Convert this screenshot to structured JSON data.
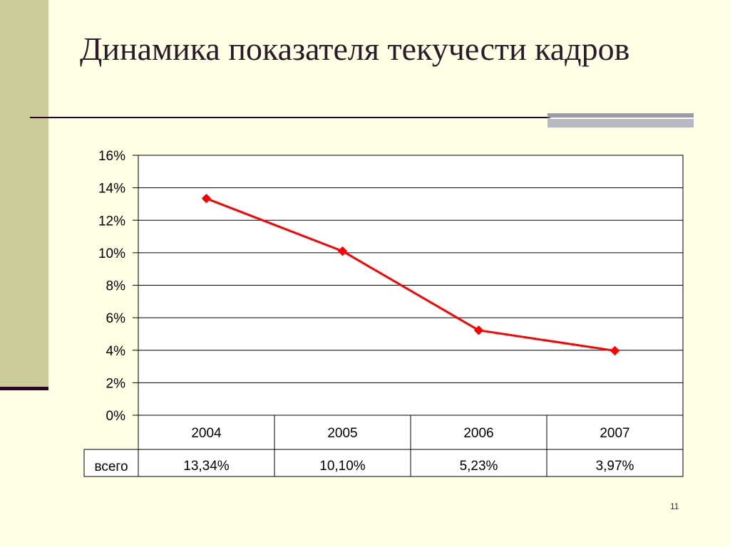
{
  "slide": {
    "title": "Динамика показателя текучести кадров",
    "page_number": "11"
  },
  "colors": {
    "background": "#FFFFE5",
    "sidebar": "#CCCC99",
    "accent_dark": "#330033",
    "series": "#FF0000"
  },
  "chart_data": {
    "type": "line",
    "categories": [
      "2004",
      "2005",
      "2006",
      "2007"
    ],
    "series": [
      {
        "name": "всего",
        "values": [
          13.34,
          10.1,
          5.23,
          3.97
        ],
        "labels": [
          "13,34%",
          "10,10%",
          "5,23%",
          "3,97%"
        ],
        "marker": "diamond",
        "color": "#FF0000"
      }
    ],
    "yticks": [
      "0%",
      "2%",
      "4%",
      "6%",
      "8%",
      "10%",
      "12%",
      "14%",
      "16%"
    ],
    "ylim": [
      0,
      16
    ],
    "grid": true,
    "data_table": true,
    "legend": "none"
  }
}
